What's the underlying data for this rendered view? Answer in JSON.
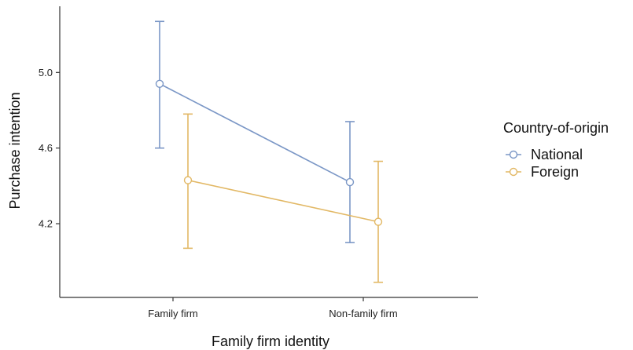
{
  "chart_data": {
    "type": "line",
    "title": "",
    "xlabel": "Family firm identity",
    "ylabel": "Purchase intention",
    "categories": [
      "Family firm",
      "Non-family firm"
    ],
    "y_ticks": [
      "4.2",
      "4.6",
      "5.0"
    ],
    "ylim": [
      3.81,
      5.35
    ],
    "grid": false,
    "legend": {
      "title": "Country-of-origin",
      "position": "right"
    },
    "series": [
      {
        "name": "National",
        "color": "#7b97c6",
        "values": [
          4.94,
          4.42
        ],
        "ci_low": [
          4.6,
          4.1
        ],
        "ci_high": [
          5.27,
          4.74
        ]
      },
      {
        "name": "Foreign",
        "color": "#e2b865",
        "values": [
          4.43,
          4.21
        ],
        "ci_low": [
          4.07,
          3.89
        ],
        "ci_high": [
          4.78,
          4.53
        ]
      }
    ]
  }
}
